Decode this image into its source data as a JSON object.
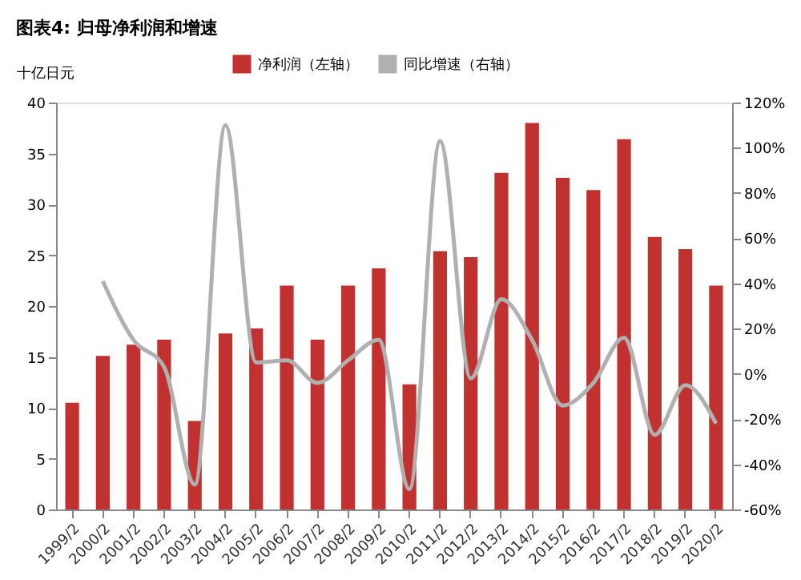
{
  "chart_data": {
    "type": "bar",
    "title": "图表4: 归母净利润和增速",
    "ylabel": "十亿日元",
    "categories": [
      "1999/2",
      "2000/2",
      "2001/2",
      "2002/2",
      "2003/2",
      "2004/2",
      "2005/2",
      "2006/2",
      "2007/2",
      "2008/2",
      "2009/2",
      "2010/2",
      "2011/2",
      "2012/2",
      "2013/2",
      "2014/2",
      "2015/2",
      "2016/2",
      "2017/2",
      "2018/2",
      "2019/2",
      "2020/2"
    ],
    "series": [
      {
        "name": "净利润（左轴）",
        "color": "#c0312f",
        "values": [
          10.5,
          15.1,
          16.2,
          16.7,
          8.7,
          17.3,
          17.8,
          22,
          16.7,
          22,
          23.7,
          12.3,
          25.4,
          24.8,
          33.1,
          38,
          32.6,
          31.4,
          36.4,
          26.8,
          25.6,
          22
        ]
      },
      {
        "name": "同比增速（右轴）",
        "type": "line",
        "axis": "y2",
        "color": "#b0b0b0",
        "values": [
          null,
          41,
          15,
          3,
          -49,
          110,
          5,
          6,
          -4,
          6,
          15,
          -51,
          103,
          -2,
          33,
          15,
          -14,
          -4,
          16,
          -27,
          -5,
          -22
        ]
      }
    ],
    "ylim": [
      0,
      40
    ],
    "yticks": [
      0,
      5,
      10,
      15,
      20,
      25,
      30,
      35,
      40
    ],
    "y2lim": [
      -60,
      120
    ],
    "y2ticks": [
      {
        "value": -60,
        "label": "-60%"
      },
      {
        "value": -40,
        "label": "-40%"
      },
      {
        "value": -20,
        "label": "-20%"
      },
      {
        "value": 0,
        "label": "0%"
      },
      {
        "value": 20,
        "label": "20%"
      },
      {
        "value": 40,
        "label": "40%"
      },
      {
        "value": 60,
        "label": "60%"
      },
      {
        "value": 80,
        "label": "80%"
      },
      {
        "value": 100,
        "label": "100%"
      },
      {
        "value": 120,
        "label": "120%"
      }
    ],
    "legend": "top",
    "grid": false
  }
}
